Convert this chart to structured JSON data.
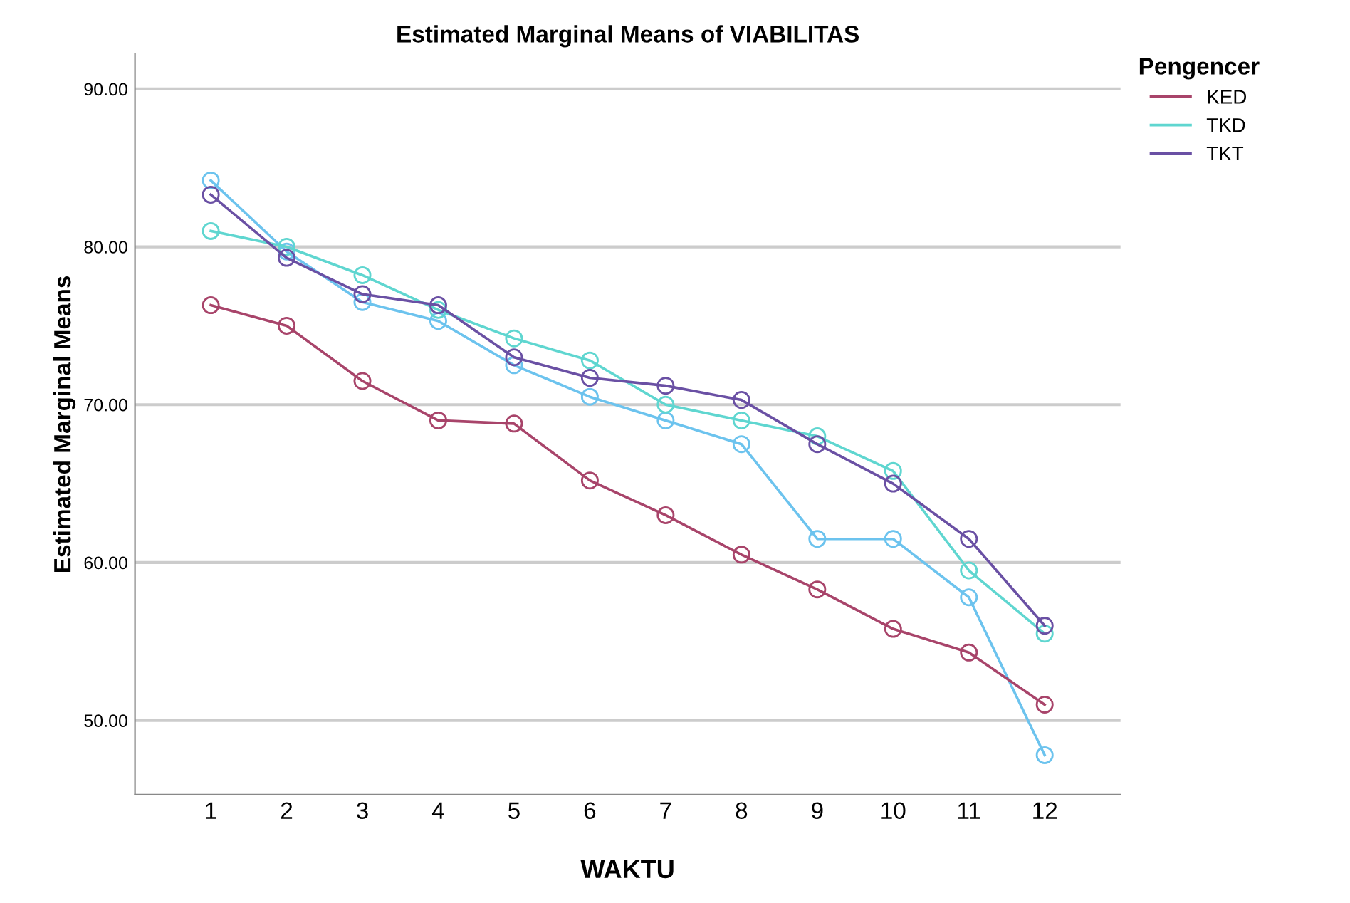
{
  "chart_data": {
    "type": "line",
    "title": "Estimated Marginal Means of VIABILITAS",
    "xlabel": "WAKTU",
    "ylabel": "Estimated Marginal Means",
    "legend_title": "Pengencer",
    "categories": [
      "1",
      "2",
      "3",
      "4",
      "5",
      "6",
      "7",
      "8",
      "9",
      "10",
      "11",
      "12"
    ],
    "series": [
      {
        "color": "#6cc3ee",
        "values": [
          84.2,
          79.7,
          76.5,
          75.3,
          72.5,
          70.5,
          69.0,
          67.5,
          61.5,
          61.5,
          57.8,
          47.8
        ]
      },
      {
        "name": "KED",
        "color": "#a8446a",
        "values": [
          76.3,
          75.0,
          71.5,
          69.0,
          68.8,
          65.2,
          63.0,
          60.5,
          58.3,
          55.8,
          54.3,
          51.0
        ]
      },
      {
        "name": "TKD",
        "color": "#5fd6d0",
        "values": [
          81.0,
          80.0,
          78.2,
          76.0,
          74.2,
          72.8,
          70.0,
          69.0,
          68.0,
          65.8,
          59.5,
          55.5
        ]
      },
      {
        "name": "TKT",
        "color": "#6a50a4",
        "values": [
          83.3,
          79.3,
          77.0,
          76.3,
          73.0,
          71.7,
          71.2,
          70.3,
          67.5,
          65.0,
          61.5,
          56.0
        ]
      }
    ],
    "ylim": [
      45.3,
      92.2
    ],
    "yticks": [
      {
        "value": 50,
        "label": "50.00"
      },
      {
        "value": 60,
        "label": "60.00"
      },
      {
        "value": 70,
        "label": "70.00"
      },
      {
        "value": 80,
        "label": "80.00"
      },
      {
        "value": 90,
        "label": "90.00"
      }
    ],
    "grid": "y",
    "legend": "top right",
    "marker": "circle",
    "line_style": "solid"
  }
}
